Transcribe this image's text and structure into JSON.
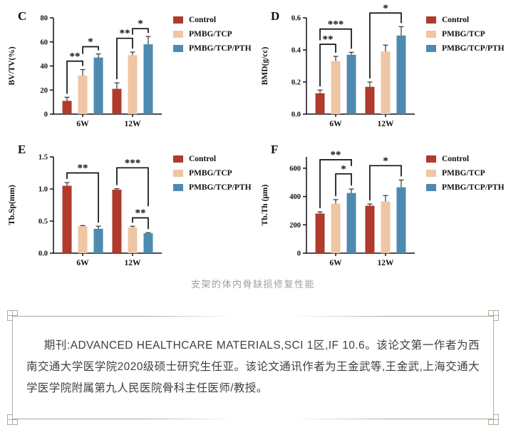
{
  "caption": "支架的体内骨缺损修复性能",
  "colors": {
    "control": "#B03B2C",
    "pmbg_tcp": "#EFC5A3",
    "pmbg_tcp_pth": "#4E8AB0",
    "box_border": "#A9B09C",
    "caption_text": "#9E9E9E",
    "body_text": "#3F3F3F",
    "axis": "#111111"
  },
  "legend": {
    "items": [
      {
        "label": "Control",
        "color": "#B03B2C"
      },
      {
        "label": "PMBG/TCP",
        "color": "#EFC5A3"
      },
      {
        "label": "PMBG/TCP/PTH",
        "color": "#4E8AB0"
      }
    ]
  },
  "chart_data": [
    {
      "type": "bar",
      "panel": "C",
      "ylabel": "BV/TV(%)",
      "categories": [
        "6W",
        "12W"
      ],
      "series": [
        {
          "name": "Control",
          "values": [
            11,
            21
          ],
          "errors": [
            3,
            5
          ]
        },
        {
          "name": "PMBG/TCP",
          "values": [
            32,
            49
          ],
          "errors": [
            5,
            2.5
          ]
        },
        {
          "name": "PMBG/TCP/PTH",
          "values": [
            47,
            58
          ],
          "errors": [
            3,
            6.5
          ]
        }
      ],
      "ylim": [
        0,
        80
      ],
      "yticks": [
        0,
        20,
        40,
        60,
        80
      ],
      "ytick_labels": [
        "0",
        "20",
        "40",
        "60",
        "80"
      ],
      "significance": [
        {
          "group": 0,
          "from": 0,
          "to": 1,
          "y": 44,
          "label": "**"
        },
        {
          "group": 0,
          "from": 1,
          "to": 2,
          "y": 56,
          "label": "*",
          "leg_from": 50
        },
        {
          "group": 1,
          "from": 0,
          "to": 1,
          "y": 63,
          "label": "**"
        },
        {
          "group": 1,
          "from": 1,
          "to": 2,
          "y": 71,
          "label": "*",
          "leg_from": 66
        }
      ]
    },
    {
      "type": "bar",
      "panel": "D",
      "ylabel": "BMD(g/cc)",
      "categories": [
        "6W",
        "12W"
      ],
      "series": [
        {
          "name": "Control",
          "values": [
            0.13,
            0.17
          ],
          "errors": [
            0.02,
            0.03
          ]
        },
        {
          "name": "PMBG/TCP",
          "values": [
            0.33,
            0.39
          ],
          "errors": [
            0.03,
            0.04
          ]
        },
        {
          "name": "PMBG/TCP/PTH",
          "values": [
            0.37,
            0.49
          ],
          "errors": [
            0.015,
            0.055
          ]
        }
      ],
      "ylim": [
        0,
        0.6
      ],
      "yticks": [
        0,
        0.2,
        0.4,
        0.6
      ],
      "ytick_labels": [
        "0.0",
        "0.2",
        "0.4",
        "0.6"
      ],
      "significance": [
        {
          "group": 0,
          "from": 0,
          "to": 1,
          "y": 0.435,
          "label": "**"
        },
        {
          "group": 0,
          "from": 0,
          "to": 2,
          "y": 0.53,
          "label": "***",
          "leg_from": 0.46
        },
        {
          "group": 1,
          "from": 0,
          "to": 2,
          "y": 0.63,
          "label": "*"
        }
      ]
    },
    {
      "type": "bar",
      "panel": "E",
      "ylabel": "Tb.Sp(mm)",
      "categories": [
        "6W",
        "12W"
      ],
      "series": [
        {
          "name": "Control",
          "values": [
            1.05,
            0.99
          ],
          "errors": [
            0.05,
            0.015
          ]
        },
        {
          "name": "PMBG/TCP",
          "values": [
            0.42,
            0.4
          ],
          "errors": [
            0.01,
            0.02
          ]
        },
        {
          "name": "PMBG/TCP/PTH",
          "values": [
            0.38,
            0.31
          ],
          "errors": [
            0.04,
            0.01
          ]
        }
      ],
      "ylim": [
        0,
        1.5
      ],
      "yticks": [
        0,
        0.5,
        1.0,
        1.5
      ],
      "ytick_labels": [
        "0.0",
        "0.5",
        "1.0",
        "1.5"
      ],
      "significance": [
        {
          "group": 0,
          "from": 0,
          "to": 2,
          "y": 1.25,
          "label": "**"
        },
        {
          "group": 1,
          "from": 0,
          "to": 2,
          "y": 1.33,
          "label": "***",
          "leg_to": 0.73
        },
        {
          "group": 1,
          "from": 1,
          "to": 2,
          "y": 0.55,
          "label": "**"
        }
      ]
    },
    {
      "type": "bar",
      "panel": "F",
      "ylabel": "Tb.Th (μm)",
      "categories": [
        "6W",
        "12W"
      ],
      "series": [
        {
          "name": "Control",
          "values": [
            280,
            335
          ],
          "errors": [
            12,
            12
          ]
        },
        {
          "name": "PMBG/TCP",
          "values": [
            350,
            365
          ],
          "errors": [
            28,
            42
          ]
        },
        {
          "name": "PMBG/TCP/PTH",
          "values": [
            425,
            465
          ],
          "errors": [
            28,
            52
          ]
        }
      ],
      "ylim": [
        0,
        680
      ],
      "yticks": [
        0,
        200,
        400,
        600
      ],
      "ytick_labels": [
        "0",
        "200",
        "400",
        "600"
      ],
      "significance": [
        {
          "group": 0,
          "from": 0,
          "to": 2,
          "y": 660,
          "label": "**",
          "leg_to": 615
        },
        {
          "group": 0,
          "from": 1,
          "to": 2,
          "y": 560,
          "label": "*"
        },
        {
          "group": 1,
          "from": 0,
          "to": 2,
          "y": 618,
          "label": "*"
        }
      ]
    }
  ],
  "info_box": {
    "text": "期刊:ADVANCED HEALTHCARE MATERIALS,SCI 1区,IF 10.6。该论文第一作者为西南交通大学医学院2020级硕士研究生任亚。该论文通讯作者为王金武等,王金武,上海交通大学医学院附属第九人民医院骨科主任医师/教授。"
  }
}
